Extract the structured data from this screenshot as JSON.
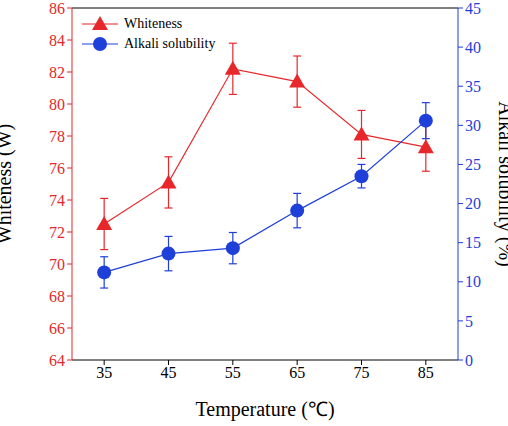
{
  "chart_data": {
    "type": "line",
    "x_label": "Temperature (℃)",
    "x": [
      35,
      45,
      55,
      65,
      75,
      85
    ],
    "xlim": [
      30,
      90
    ],
    "xticks": [
      35,
      45,
      55,
      65,
      75,
      85
    ],
    "y_label": "Whiteness (W)",
    "ylim": [
      64,
      86
    ],
    "yticks": [
      64,
      66,
      68,
      70,
      72,
      74,
      76,
      78,
      80,
      82,
      84,
      86
    ],
    "y2_label": "Alkali solubility (%)",
    "y2lim": [
      0,
      45
    ],
    "y2ticks": [
      0,
      5,
      10,
      15,
      20,
      25,
      30,
      35,
      40,
      45
    ],
    "legend": "upper left",
    "series": [
      {
        "name": "Whiteness",
        "color": "#e8272a",
        "marker": "triangle",
        "values": [
          72.5,
          75.1,
          82.2,
          81.4,
          78.1,
          77.3
        ],
        "errors": [
          1.6,
          1.6,
          1.6,
          1.6,
          1.5,
          1.5
        ]
      },
      {
        "name": "Alkali solubility",
        "color": "#1f3fd9",
        "marker": "circle",
        "axis": "y2",
        "values": [
          11.2,
          13.6,
          14.3,
          19.1,
          23.5,
          30.6
        ],
        "errors": [
          2.0,
          2.2,
          2.0,
          2.2,
          1.5,
          2.3
        ]
      }
    ]
  }
}
